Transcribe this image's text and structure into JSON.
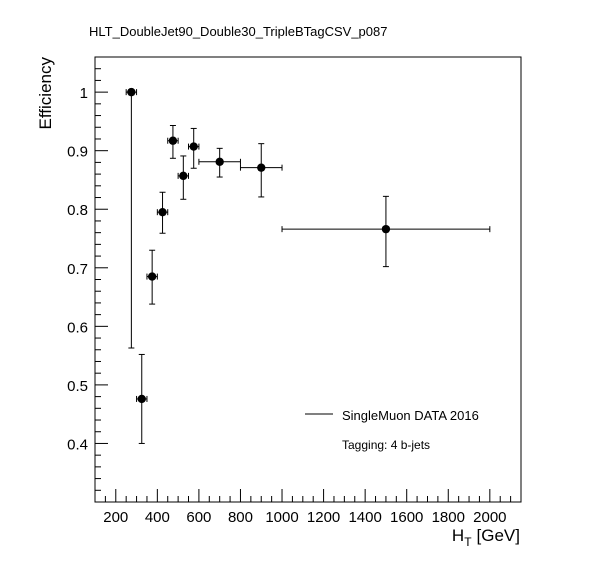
{
  "chart_data": {
    "type": "scatter",
    "title": "HLT_DoubleJet90_Double30_TripleBTagCSV_p087",
    "ylabel": "Efficiency",
    "xlabel_main": "H",
    "xlabel_sub": "T",
    "xlabel_unit": "[GeV]",
    "xlim": [
      100,
      2150
    ],
    "ylim": [
      0.3,
      1.06
    ],
    "x_ticks": [
      200,
      400,
      600,
      800,
      1000,
      1200,
      1400,
      1600,
      1800,
      2000
    ],
    "x_tick_labels": [
      "200",
      "400",
      "600",
      "800",
      "1000",
      "1200",
      "1400",
      "1600",
      "1800",
      "2000"
    ],
    "y_ticks": [
      0.4,
      0.5,
      0.6,
      0.7,
      0.8,
      0.9,
      1.0
    ],
    "y_tick_labels": [
      "0.4",
      "0.5",
      "0.6",
      "0.7",
      "0.8",
      "0.9",
      "1"
    ],
    "grid": false,
    "legend": {
      "position": "bottom-right",
      "entries": [
        "SingleMuon DATA 2016"
      ],
      "note": "Tagging: 4 b-jets"
    },
    "series": [
      {
        "name": "SingleMuon DATA 2016",
        "points": [
          {
            "x": 275,
            "xlow": 250,
            "xhigh": 300,
            "y": 1.0,
            "ylow": 0.563,
            "yhigh": 1.0
          },
          {
            "x": 325,
            "xlow": 300,
            "xhigh": 350,
            "y": 0.476,
            "ylow": 0.4,
            "yhigh": 0.552
          },
          {
            "x": 375,
            "xlow": 350,
            "xhigh": 400,
            "y": 0.685,
            "ylow": 0.638,
            "yhigh": 0.73
          },
          {
            "x": 425,
            "xlow": 400,
            "xhigh": 450,
            "y": 0.795,
            "ylow": 0.759,
            "yhigh": 0.829
          },
          {
            "x": 475,
            "xlow": 450,
            "xhigh": 500,
            "y": 0.917,
            "ylow": 0.887,
            "yhigh": 0.943
          },
          {
            "x": 525,
            "xlow": 500,
            "xhigh": 550,
            "y": 0.857,
            "ylow": 0.817,
            "yhigh": 0.891
          },
          {
            "x": 575,
            "xlow": 550,
            "xhigh": 600,
            "y": 0.907,
            "ylow": 0.87,
            "yhigh": 0.938
          },
          {
            "x": 700,
            "xlow": 600,
            "xhigh": 800,
            "y": 0.881,
            "ylow": 0.855,
            "yhigh": 0.904
          },
          {
            "x": 900,
            "xlow": 800,
            "xhigh": 1000,
            "y": 0.871,
            "ylow": 0.821,
            "yhigh": 0.912
          },
          {
            "x": 1500,
            "xlow": 1000,
            "xhigh": 2000,
            "y": 0.766,
            "ylow": 0.702,
            "yhigh": 0.822
          }
        ]
      }
    ]
  }
}
